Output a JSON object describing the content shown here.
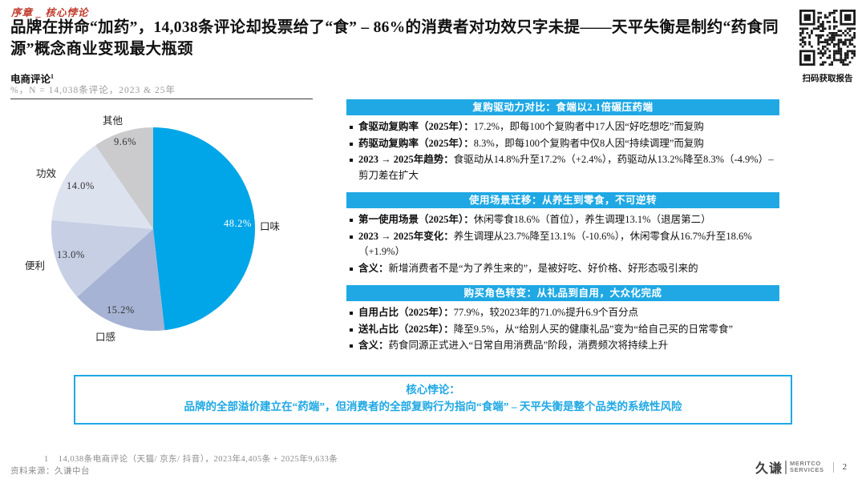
{
  "colors": {
    "accent": "#1FA8E4",
    "pie_main": "#00A6E8",
    "kicker_red": "#BF3A2B",
    "qr_dark": "#1A1A1A"
  },
  "header": {
    "kicker": "序章 _ 核心悖论",
    "title": "品牌在拼命“加药”，14,038条评论却投票给了“食” – 86%的消费者对功效只字未提——天平失衡是制约“药食同源”概念商业变现最大瓶颈",
    "qr_label": "扫码获取报告"
  },
  "chart": {
    "heading": "电商评论",
    "heading_sup": "1",
    "subtitle": "%，N = 14,038条评论，2023 & 25年"
  },
  "chart_data": {
    "type": "pie",
    "title": "电商评论",
    "subtitle": "%，N = 14,038条评论，2023 & 25年",
    "start_angle_deg": -90,
    "direction": "clockwise",
    "slices": [
      {
        "name": "口味",
        "value": 48.2,
        "label": "48.2%",
        "color": "#00A6E8"
      },
      {
        "name": "口感",
        "value": 15.2,
        "label": "15.2%",
        "color": "#A6B3D4"
      },
      {
        "name": "便利",
        "value": 13.0,
        "label": "13.0%",
        "color": "#C6CFE4"
      },
      {
        "name": "功效",
        "value": 14.0,
        "label": "14.0%",
        "color": "#DDE2EF"
      },
      {
        "name": "其他",
        "value": 9.6,
        "label": "9.6%",
        "color": "#CBCBCD"
      }
    ]
  },
  "panels": [
    {
      "header": "复购驱动力对比：食端以2.1倍碾压药端",
      "bullets": [
        {
          "label": "食驱动复购率（2025年）：",
          "text": "17.2%，即每100个复购者中17人因“好吃想吃”而复购"
        },
        {
          "label": "药驱动复购率（2025年）：",
          "text": "8.3%，即每100个复购者中仅8人因“持续调理”而复购"
        },
        {
          "label": "2023 → 2025年趋势：",
          "text": "食驱动从14.8%升至17.2%（+2.4%），药驱动从13.2%降至8.3%（-4.9%）– 剪刀差在扩大"
        }
      ]
    },
    {
      "header": "使用场景迁移：从养生到零食，不可逆转",
      "bullets": [
        {
          "label": "第一使用场景（2025年）：",
          "text": "休闲零食18.6%（首位），养生调理13.1%（退居第二）"
        },
        {
          "label": "2023 → 2025年变化：",
          "text": "养生调理从23.7%降至13.1%（-10.6%），休闲零食从16.7%升至18.6%（+1.9%）"
        },
        {
          "label": "含义：",
          "text": "新增消费者不是“为了养生来的”，是被好吃、好价格、好形态吸引来的"
        }
      ]
    },
    {
      "header": "购买角色转变：从礼品到自用，大众化完成",
      "bullets": [
        {
          "label": "自用占比（2025年）：",
          "text": "77.9%，较2023年的71.0%提升6.9个百分点"
        },
        {
          "label": "送礼占比（2025年）：",
          "text": "降至9.5%，从“给别人买的健康礼品”变为“给自己买的日常零食”"
        },
        {
          "label": "含义：",
          "text": "药食同源正式进入“日常自用消费品”阶段，消费频次将持续上升"
        }
      ]
    }
  ],
  "summary_box": {
    "title": "核心悖论：",
    "text": "品牌的全部溢价建立在“药端”，但消费者的全部复购行为指向“食端” – 天平失衡是整个品类的系统性风险"
  },
  "footer": {
    "note_index": "1",
    "note_text": "14,038条电商评论（天猫/ 京东/ 抖音），2023年4,405条 + 2025年9,633条",
    "source": "资料来源：久谦中台",
    "logo_cn": "久谦",
    "logo_en_line1": "MERITCO",
    "logo_en_line2": "SERVICES",
    "page_number": "2"
  }
}
